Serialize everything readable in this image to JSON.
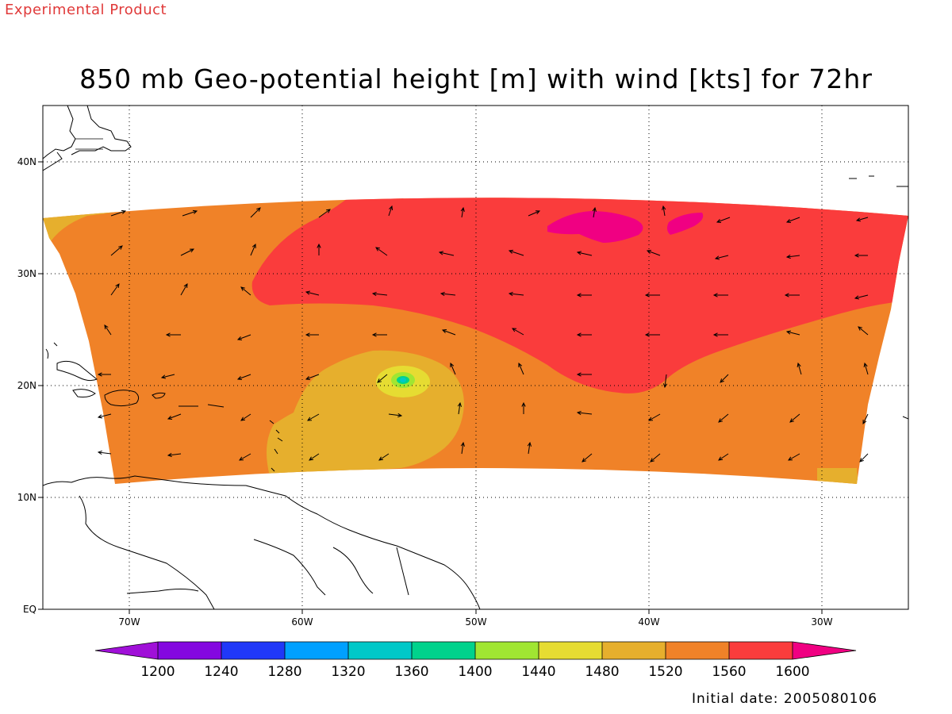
{
  "header": {
    "experimental": "Experimental Product",
    "title": "850 mb Geo-potential height [m] with wind [kts] for 72hr"
  },
  "footer": {
    "initial_date": "Initial date: 2005080106"
  },
  "axes": {
    "lon_labels": [
      "70W",
      "60W",
      "50W",
      "40W",
      "30W"
    ],
    "lat_labels": [
      "40N",
      "30N",
      "20N",
      "10N",
      "EQ"
    ]
  },
  "colorbar": {
    "levels": [
      "1200",
      "1240",
      "1280",
      "1320",
      "1360",
      "1400",
      "1440",
      "1480",
      "1520",
      "1560",
      "1600"
    ],
    "colors": [
      "#a010d8",
      "#8408e0",
      "#2038f8",
      "#00a0ff",
      "#00c8c8",
      "#00d28c",
      "#a0e632",
      "#e6dc32",
      "#e6af2d",
      "#f08228",
      "#fa3c3c",
      "#f00082"
    ]
  },
  "fill_colors": {
    "c1440": "#a0e632",
    "c1480": "#e6dc32",
    "c1520": "#e6af2d",
    "c1560": "#f08228",
    "c1600": "#fa3c3c",
    "c1640": "#f00082",
    "c1360": "#00c8c8",
    "c1400": "#00d28c"
  }
}
